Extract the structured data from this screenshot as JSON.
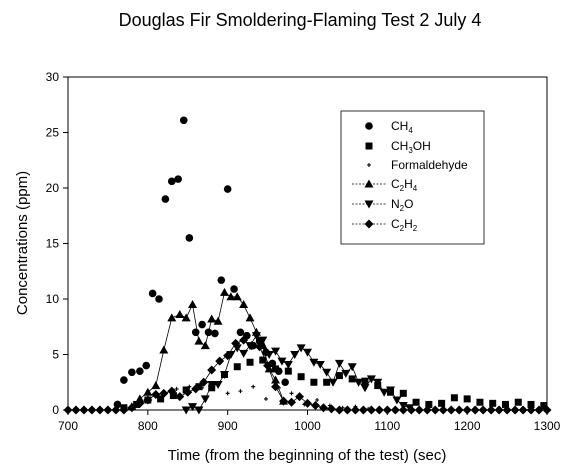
{
  "chart_data": {
    "type": "scatter",
    "title": "Douglas Fir Smoldering-Flaming Test 2 July 4",
    "xlabel": "Time (from the beginning of the test) (sec)",
    "ylabel": "Concentrations (ppm)",
    "xlim": [
      700,
      1300
    ],
    "ylim": [
      0,
      30
    ],
    "xticks": [
      "700",
      "800",
      "900",
      "1000",
      "1100",
      "1200",
      "1300"
    ],
    "yticks": [
      "0",
      "5",
      "10",
      "15",
      "20",
      "25",
      "30"
    ],
    "grid": false,
    "legend_position": "top-right",
    "series": [
      {
        "name_main": "CH",
        "name_sub": "4",
        "name_rest": "",
        "marker": "circle",
        "line": false,
        "x": [
          762,
          770,
          780,
          790,
          798,
          806,
          814,
          822,
          830,
          838,
          845,
          852,
          860,
          868,
          876,
          884,
          892,
          900,
          908,
          916,
          924,
          932,
          940,
          948,
          956,
          964,
          972
        ],
        "y": [
          0.5,
          2.7,
          3.4,
          3.5,
          4.0,
          10.5,
          10.0,
          19.0,
          20.6,
          20.8,
          26.1,
          15.5,
          7.0,
          7.7,
          7.0,
          6.9,
          11.7,
          19.9,
          10.9,
          7.0,
          6.7,
          5.8,
          6.2,
          5.2,
          4.2,
          3.5,
          2.5
        ]
      },
      {
        "name_main": "CH",
        "name_sub": "3",
        "name_rest": "OH",
        "marker": "square",
        "line": false,
        "x": [
          770,
          786,
          800,
          816,
          832,
          848,
          864,
          880,
          896,
          912,
          928,
          944,
          960,
          976,
          992,
          1008,
          1024,
          1040,
          1056,
          1072,
          1088,
          1104,
          1120,
          1136,
          1152,
          1168,
          1184,
          1200,
          1216,
          1232,
          1248,
          1264,
          1280,
          1296
        ],
        "y": [
          0.2,
          0.5,
          0.9,
          1.0,
          1.3,
          1.8,
          2.1,
          2.0,
          3.2,
          3.9,
          4.3,
          4.5,
          3.7,
          3.5,
          3.0,
          2.5,
          2.5,
          3.1,
          2.8,
          2.6,
          2.2,
          1.6,
          1.5,
          0.7,
          0.5,
          0.6,
          1.1,
          1.0,
          0.7,
          0.6,
          0.5,
          0.7,
          0.5,
          0.4
        ]
      },
      {
        "name_main": "Formaldehyde",
        "name_sub": "",
        "name_rest": "",
        "marker": "plus",
        "line": false,
        "x": [
          836,
          852,
          868,
          884,
          900,
          916,
          932,
          948,
          964,
          980,
          996,
          1012,
          1028,
          1044,
          1060,
          1076
        ],
        "y": [
          1.9,
          2.1,
          2.0,
          2.3,
          1.5,
          1.7,
          2.1,
          1.0,
          2.0,
          1.5,
          0.5,
          0.9,
          0.4,
          0.2,
          0.3,
          0.1
        ]
      },
      {
        "name_main": "C",
        "name_sub": "2",
        "name_rest": "H",
        "name_sub2": "4",
        "marker": "triangle-up",
        "line": true,
        "x": [
          780,
          790,
          800,
          810,
          820,
          830,
          840,
          848,
          856,
          864,
          872,
          880,
          888,
          896,
          904,
          912,
          920,
          928,
          936,
          944,
          952,
          960,
          970
        ],
        "y": [
          0.3,
          1.0,
          1.6,
          2.2,
          5.4,
          8.3,
          8.6,
          8.3,
          9.5,
          6.2,
          5.8,
          8.2,
          8.0,
          10.6,
          10.2,
          10.2,
          9.5,
          8.3,
          7.0,
          5.8,
          3.7,
          2.7,
          0.8
        ]
      },
      {
        "name_main": "N",
        "name_sub": "2",
        "name_rest": "O",
        "marker": "triangle-down",
        "line": true,
        "x": [
          848,
          856,
          864,
          872,
          880,
          888,
          896,
          904,
          912,
          920,
          928,
          936,
          944,
          952,
          960,
          968,
          976,
          984,
          992,
          1000,
          1008,
          1016,
          1024,
          1032,
          1040,
          1048,
          1056,
          1064,
          1072,
          1080,
          1088,
          1096,
          1104,
          1112,
          1120,
          1128
        ],
        "y": [
          0.0,
          0.3,
          0.0,
          1.0,
          2.3,
          2.3,
          3.2,
          5.0,
          5.6,
          5.1,
          5.8,
          6.7,
          6.3,
          5.0,
          5.3,
          4.4,
          4.1,
          5.0,
          5.6,
          5.2,
          4.3,
          4.1,
          3.4,
          2.5,
          4.2,
          3.3,
          3.9,
          2.5,
          2.0,
          2.8,
          2.5,
          1.6,
          1.8,
          0.9,
          0.4,
          0.2
        ]
      },
      {
        "name_main": "C",
        "name_sub": "2",
        "name_rest": "H",
        "name_sub2": "2",
        "marker": "diamond",
        "line": true,
        "x": [
          700,
          710,
          720,
          730,
          740,
          750,
          760,
          770,
          780,
          790,
          800,
          810,
          820,
          830,
          840,
          850,
          860,
          870,
          880,
          890,
          900,
          910,
          920,
          930,
          940,
          950,
          960,
          970,
          980,
          990,
          1000,
          1010,
          1020,
          1030,
          1040,
          1050,
          1060,
          1070,
          1080,
          1090,
          1100,
          1110,
          1120,
          1130,
          1140,
          1150,
          1160,
          1170,
          1180,
          1190,
          1200,
          1210,
          1220,
          1230,
          1240,
          1250,
          1260,
          1270,
          1280,
          1290,
          1300
        ],
        "y": [
          0,
          0,
          0,
          0,
          0,
          0,
          0,
          0,
          0.2,
          0.6,
          0.9,
          1.4,
          1.5,
          1.7,
          1.2,
          1.6,
          1.9,
          2.5,
          3.6,
          4.4,
          4.9,
          6.0,
          6.3,
          5.8,
          5.7,
          4.0,
          2.1,
          0.8,
          0.7,
          1.2,
          0.6,
          0.4,
          0.2,
          0.1,
          0,
          0,
          0,
          0,
          0,
          0,
          0,
          0,
          0,
          0,
          0,
          0,
          0,
          0,
          0,
          0,
          0,
          0,
          0,
          0,
          0,
          0,
          0,
          0,
          0,
          0,
          0
        ]
      }
    ]
  }
}
